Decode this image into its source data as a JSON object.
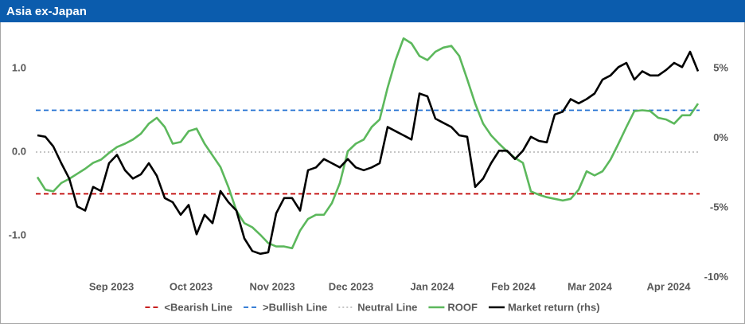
{
  "chart_data": {
    "type": "line",
    "title": "Asia ex-Japan",
    "xlim": [
      0,
      83
    ],
    "xticks": [
      {
        "value": 9.3,
        "label": "Sep 2023"
      },
      {
        "value": 19.3,
        "label": "Oct 2023"
      },
      {
        "value": 29.5,
        "label": "Nov 2023"
      },
      {
        "value": 39.4,
        "label": "Dec 2023"
      },
      {
        "value": 49.6,
        "label": "Jan 2024"
      },
      {
        "value": 59.8,
        "label": "Feb 2024"
      },
      {
        "value": 69.4,
        "label": "Mar 2024"
      },
      {
        "value": 79.3,
        "label": "Apr 2024"
      }
    ],
    "ylim": [
      -1.5,
      1.5
    ],
    "yticks": [
      {
        "value": -1,
        "label": "-1.0"
      },
      {
        "value": 0,
        "label": "0.0"
      },
      {
        "value": 1,
        "label": "1.0"
      }
    ],
    "y2lim": [
      -10,
      8
    ],
    "y2ticks": [
      {
        "value": -10,
        "label": "-10%"
      },
      {
        "value": -5,
        "label": "-5%"
      },
      {
        "value": 0,
        "label": "0%"
      },
      {
        "value": 5,
        "label": "5%"
      }
    ],
    "reference_lines": [
      {
        "name": "<Bearish Line",
        "value": -0.5,
        "color": "#c00000",
        "style": "dashed"
      },
      {
        "name": ">Bullish Line",
        "value": 0.5,
        "color": "#1f6fd1",
        "style": "dashed"
      },
      {
        "name": "Neutral Line",
        "value": 0,
        "color": "#bfbfbf",
        "style": "dotted"
      }
    ],
    "series": [
      {
        "name": "ROOF",
        "color": "#5cb85c",
        "values": [
          -0.3,
          -0.45,
          -0.47,
          -0.37,
          -0.32,
          -0.26,
          -0.2,
          -0.13,
          -0.09,
          -0.01,
          0.06,
          0.1,
          0.15,
          0.22,
          0.34,
          0.41,
          0.3,
          0.1,
          0.12,
          0.25,
          0.28,
          0.1,
          -0.04,
          -0.18,
          -0.42,
          -0.7,
          -0.85,
          -0.9,
          -0.99,
          -1.09,
          -1.13,
          -1.13,
          -1.15,
          -0.94,
          -0.8,
          -0.75,
          -0.75,
          -0.61,
          -0.37,
          0.01,
          0.1,
          0.15,
          0.3,
          0.39,
          0.77,
          1.1,
          1.36,
          1.3,
          1.15,
          1.1,
          1.2,
          1.25,
          1.27,
          1.15,
          0.87,
          0.58,
          0.34,
          0.2,
          0.1,
          0.01,
          -0.07,
          -0.13,
          -0.47,
          -0.51,
          -0.54,
          -0.56,
          -0.58,
          -0.56,
          -0.45,
          -0.23,
          -0.28,
          -0.23,
          -0.09,
          0.1,
          0.3,
          0.49,
          0.5,
          0.49,
          0.41,
          0.39,
          0.34,
          0.44,
          0.44,
          0.58
        ]
      },
      {
        "name": "Market return (rhs)",
        "color": "#000000",
        "axis": "y2",
        "values": [
          0.2,
          0.1,
          -0.6,
          -1.8,
          -2.9,
          -4.9,
          -5.2,
          -3.5,
          -3.8,
          -1.8,
          -1.2,
          -2.3,
          -2.9,
          -2.6,
          -1.8,
          -2.7,
          -4.3,
          -4.6,
          -5.5,
          -4.8,
          -6.9,
          -5.5,
          -6.1,
          -3.8,
          -4.6,
          -5.2,
          -7.2,
          -8.1,
          -8.3,
          -8.2,
          -5.4,
          -4.3,
          -4.3,
          -5.2,
          -2.3,
          -2.1,
          -1.5,
          -1.8,
          -2.1,
          -1.5,
          -2.1,
          -2.3,
          -2.1,
          -1.8,
          0.8,
          0.5,
          0.2,
          -0.1,
          3.2,
          3.0,
          1.4,
          1.1,
          0.8,
          0.2,
          0.1,
          -3.5,
          -2.9,
          -1.8,
          -0.9,
          -0.9,
          -1.5,
          -0.9,
          0.1,
          -0.2,
          -0.3,
          1.7,
          1.9,
          2.8,
          2.5,
          2.8,
          3.2,
          4.2,
          4.5,
          5.1,
          5.4,
          4.2,
          4.8,
          4.5,
          4.5,
          4.9,
          5.4,
          5.1,
          6.2,
          4.8
        ]
      }
    ]
  }
}
